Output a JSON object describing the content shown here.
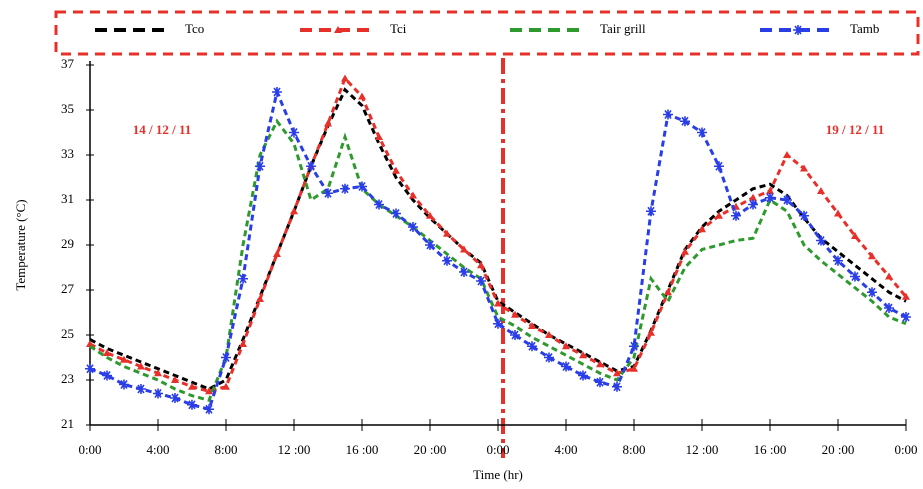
{
  "chart_data": {
    "type": "line",
    "x_label": "Time (hr)",
    "y_label": "Temperature (°C)",
    "annotations": [
      "14  /  12  /  11",
      "19  /  12  /  11"
    ],
    "x": [
      0,
      1,
      2,
      3,
      4,
      5,
      6,
      7,
      8,
      9,
      10,
      11,
      12,
      13,
      14,
      15,
      16,
      17,
      18,
      19,
      20,
      21,
      22,
      23,
      24,
      25,
      26,
      27,
      28,
      29,
      30,
      31,
      32,
      33,
      34,
      35,
      36,
      37,
      38,
      39,
      40,
      41,
      42,
      43,
      44,
      45,
      46,
      47,
      48
    ],
    "xlim": [
      0,
      48
    ],
    "xticks": [
      {
        "value": 0,
        "label": "0:00"
      },
      {
        "value": 4,
        "label": "4:00"
      },
      {
        "value": 8,
        "label": "8:00"
      },
      {
        "value": 12,
        "label": "12 :00"
      },
      {
        "value": 16,
        "label": "16 :00"
      },
      {
        "value": 20,
        "label": "20 :00"
      },
      {
        "value": 24,
        "label": "0:00"
      },
      {
        "value": 28,
        "label": "4:00"
      },
      {
        "value": 32,
        "label": "8:00"
      },
      {
        "value": 36,
        "label": "12 :00"
      },
      {
        "value": 40,
        "label": "16 :00"
      },
      {
        "value": 44,
        "label": "20 :00"
      },
      {
        "value": 48,
        "label": "0:00"
      }
    ],
    "ylim": [
      21,
      37
    ],
    "yticks": [
      21,
      23,
      25,
      27,
      29,
      31,
      33,
      35,
      37
    ],
    "grid": false,
    "series": [
      {
        "name": "Tco",
        "color": "#000000",
        "marker": "none",
        "values": [
          24.8,
          24.4,
          24.1,
          23.8,
          23.5,
          23.2,
          22.9,
          22.6,
          23.0,
          24.8,
          26.7,
          28.6,
          30.5,
          32.5,
          34.3,
          35.9,
          35.2,
          33.5,
          32.0,
          31.0,
          30.2,
          29.5,
          28.8,
          28.2,
          26.5,
          26.0,
          25.5,
          25.0,
          24.6,
          24.2,
          23.8,
          23.4,
          23.6,
          25.2,
          27.0,
          28.8,
          29.8,
          30.5,
          31.0,
          31.5,
          31.7,
          31.2,
          30.2,
          29.3,
          28.7,
          28.1,
          27.5,
          26.9,
          26.5
        ]
      },
      {
        "name": "Tci",
        "color": "#e8302a",
        "marker": "triangle",
        "values": [
          24.6,
          24.2,
          23.9,
          23.6,
          23.3,
          23.0,
          22.7,
          22.5,
          22.7,
          24.6,
          26.6,
          28.6,
          30.5,
          32.5,
          34.4,
          36.4,
          35.6,
          33.8,
          32.3,
          31.2,
          30.3,
          29.5,
          28.8,
          28.1,
          26.4,
          25.9,
          25.4,
          25.0,
          24.5,
          24.1,
          23.7,
          23.3,
          23.5,
          25.1,
          26.9,
          28.7,
          29.7,
          30.3,
          30.7,
          31.1,
          31.4,
          33.0,
          32.4,
          31.4,
          30.4,
          29.4,
          28.5,
          27.6,
          26.7
        ]
      },
      {
        "name": "Tair grill",
        "color": "#2e9a2e",
        "marker": "none",
        "values": [
          24.5,
          24.0,
          23.6,
          23.3,
          23.0,
          22.6,
          22.3,
          22.1,
          24.0,
          29.0,
          33.0,
          34.5,
          33.5,
          31.0,
          31.5,
          33.8,
          31.5,
          30.8,
          30.3,
          29.8,
          29.2,
          28.6,
          28.0,
          27.5,
          25.8,
          25.4,
          24.9,
          24.5,
          24.1,
          23.7,
          23.3,
          23.0,
          24.0,
          27.5,
          26.5,
          28.0,
          28.8,
          29.0,
          29.2,
          29.3,
          31.0,
          30.5,
          29.0,
          28.3,
          27.7,
          27.1,
          26.5,
          25.8,
          25.5
        ]
      },
      {
        "name": "Tamb",
        "color": "#2a3ee8",
        "marker": "star",
        "values": [
          23.5,
          23.2,
          22.8,
          22.6,
          22.4,
          22.2,
          21.9,
          21.7,
          24.0,
          27.5,
          32.5,
          35.8,
          34.0,
          32.5,
          31.3,
          31.5,
          31.6,
          30.8,
          30.4,
          29.8,
          29.0,
          28.3,
          27.8,
          27.4,
          25.5,
          25.0,
          24.5,
          24.0,
          23.6,
          23.2,
          22.9,
          22.7,
          24.5,
          30.5,
          34.8,
          34.5,
          34.0,
          32.5,
          30.3,
          30.8,
          31.1,
          31.0,
          30.3,
          29.2,
          28.3,
          27.6,
          26.9,
          26.2,
          25.8
        ]
      }
    ]
  }
}
